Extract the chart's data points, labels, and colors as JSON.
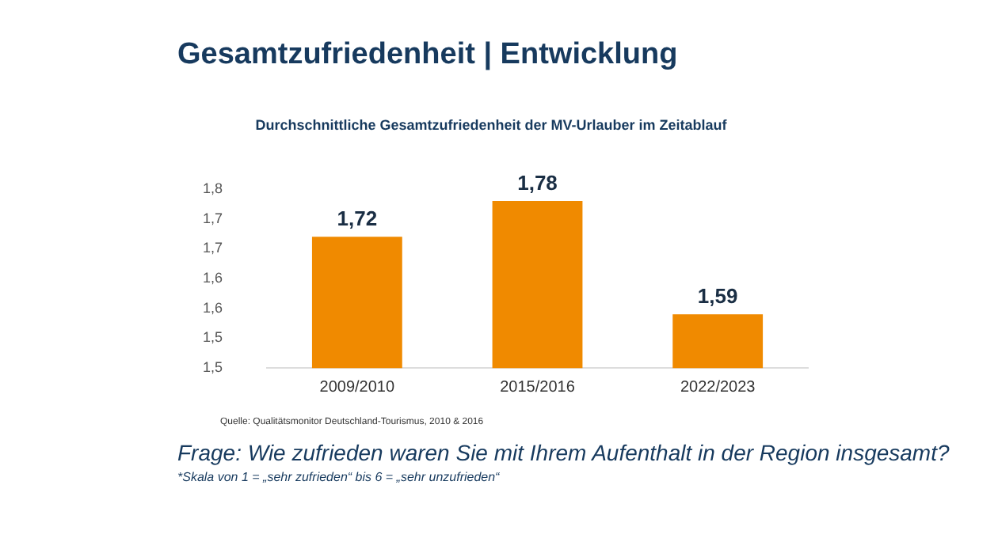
{
  "chart_data": {
    "type": "bar",
    "title": "Gesamtzufriedenheit | Entwicklung",
    "subtitle": "Durchschnittliche Gesamtzufriedenheit der MV-Urlauber im Zeitablauf",
    "categories": [
      "2009/2010",
      "2015/2016",
      "2022/2023"
    ],
    "values": [
      1.72,
      1.78,
      1.59
    ],
    "value_labels": [
      "1,72",
      "1,78",
      "1,59"
    ],
    "color": "#f08a00",
    "ylim": [
      1.5,
      1.8
    ],
    "yticks": [
      {
        "value": 1.5,
        "label": "1,5"
      },
      {
        "value": 1.55,
        "label": "1,5"
      },
      {
        "value": 1.6,
        "label": "1,6"
      },
      {
        "value": 1.65,
        "label": "1,6"
      },
      {
        "value": 1.7,
        "label": "1,7"
      },
      {
        "value": 1.75,
        "label": "1,7"
      },
      {
        "value": 1.8,
        "label": "1,8"
      }
    ],
    "grid": false,
    "annotations": [
      "Quelle: Qualitätsmonitor Deutschland-Tourismus, 2010 & 2016",
      "Frage: Wie zufrieden waren Sie mit Ihrem Aufenthalt in der Region insgesamt?",
      "*Skala von 1 = „sehr zufrieden“ bis  6 = „sehr unzufrieden“"
    ]
  }
}
